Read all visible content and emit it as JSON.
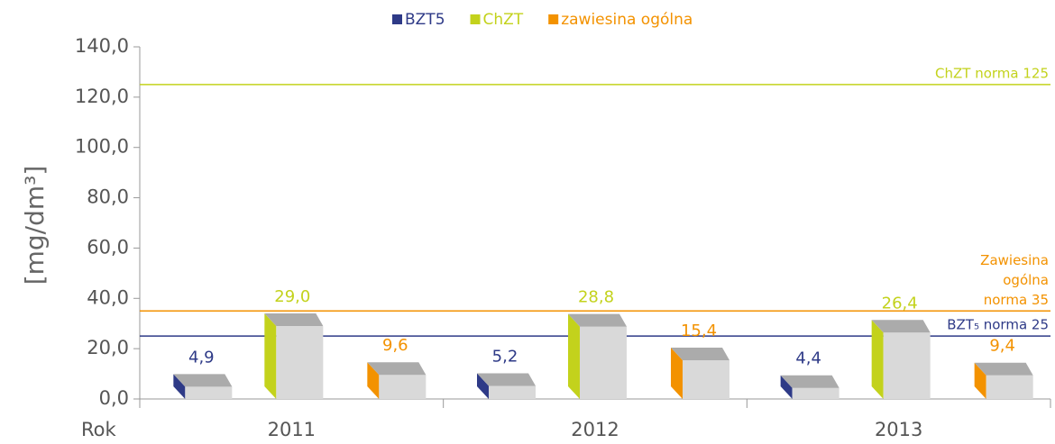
{
  "chart_data": {
    "type": "bar3d",
    "y_label": "[mg/dm³]",
    "x_label": "Rok",
    "categories": [
      "2011",
      "2012",
      "2013"
    ],
    "series": [
      {
        "name": "BZT5",
        "color": "#2e3a87",
        "values": [
          4.9,
          5.2,
          4.4
        ],
        "value_labels": [
          "4,9",
          "5,2",
          "4,4"
        ]
      },
      {
        "name": "ChZT",
        "color": "#c3d21c",
        "values": [
          29.0,
          28.8,
          26.4
        ],
        "value_labels": [
          "29,0",
          "28,8",
          "26,4"
        ]
      },
      {
        "name": "zawiesina ogólna",
        "color": "#f39200",
        "values": [
          9.6,
          15.4,
          9.4
        ],
        "value_labels": [
          "9,6",
          "15,4",
          "9,4"
        ]
      }
    ],
    "ylim": [
      0,
      140
    ],
    "yticks": [
      {
        "value": 0,
        "label": "0,0"
      },
      {
        "value": 20,
        "label": "20,0"
      },
      {
        "value": 40,
        "label": "40,0"
      },
      {
        "value": 60,
        "label": "60,0"
      },
      {
        "value": 80,
        "label": "80,0"
      },
      {
        "value": 100,
        "label": "100,0"
      },
      {
        "value": 120,
        "label": "120,0"
      },
      {
        "value": 140,
        "label": "140,0"
      }
    ],
    "reference_lines": [
      {
        "value": 125,
        "color": "#c3d21c",
        "label_lines": [
          "ChZT norma 125"
        ]
      },
      {
        "value": 35,
        "color": "#f39200",
        "label_lines": [
          "Zawiesina",
          "ogólna",
          "norma 35"
        ]
      },
      {
        "value": 25,
        "color": "#2e3a87",
        "label_lines": [
          "BZT₅ norma 25"
        ]
      }
    ],
    "legend": "top"
  }
}
